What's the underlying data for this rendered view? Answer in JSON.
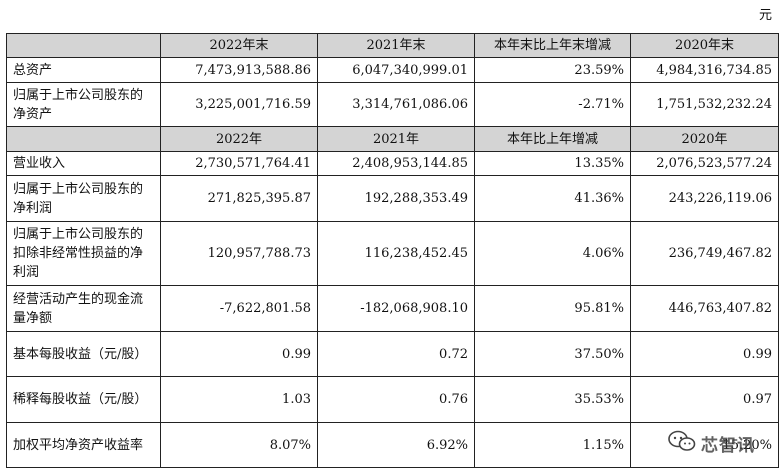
{
  "unit": "元",
  "table": {
    "header_period_end": [
      "2022年末",
      "2021年末",
      "本年末比上年末增减",
      "2020年末"
    ],
    "header_period": [
      "2022年",
      "2021年",
      "本年比上年增减",
      "2020年"
    ],
    "balance_rows": [
      {
        "label": "总资产",
        "values": [
          "7,473,913,588.86",
          "6,047,340,999.01",
          "23.59%",
          "4,984,316,734.85"
        ]
      },
      {
        "label": "归属于上市公司股东的净资产",
        "values": [
          "3,225,001,716.59",
          "3,314,761,086.06",
          "-2.71%",
          "1,751,532,232.24"
        ]
      }
    ],
    "income_rows": [
      {
        "label": "营业收入",
        "values": [
          "2,730,571,764.41",
          "2,408,953,144.85",
          "13.35%",
          "2,076,523,577.24"
        ]
      },
      {
        "label": "归属于上市公司股东的净利润",
        "values": [
          "271,825,395.87",
          "192,288,353.49",
          "41.36%",
          "243,226,119.06"
        ]
      },
      {
        "label": "归属于上市公司股东的扣除非经常性损益的净利润",
        "values": [
          "120,957,788.73",
          "116,238,452.45",
          "4.06%",
          "236,749,467.82"
        ]
      },
      {
        "label": "经营活动产生的现金流量净额",
        "values": [
          "-7,622,801.58",
          "-182,068,908.10",
          "95.81%",
          "446,763,407.82"
        ]
      },
      {
        "label": "基本每股收益（元/股）",
        "values": [
          "0.99",
          "0.72",
          "37.50%",
          "0.99"
        ]
      },
      {
        "label": "稀释每股收益（元/股）",
        "values": [
          "1.03",
          "0.76",
          "35.53%",
          "0.97"
        ]
      },
      {
        "label": "加权平均净资产收益率",
        "values": [
          "8.07%",
          "6.92%",
          "1.15%",
          "15.20%"
        ]
      }
    ]
  },
  "watermark": {
    "text": "芯智讯",
    "icon": "wechat-icon"
  }
}
